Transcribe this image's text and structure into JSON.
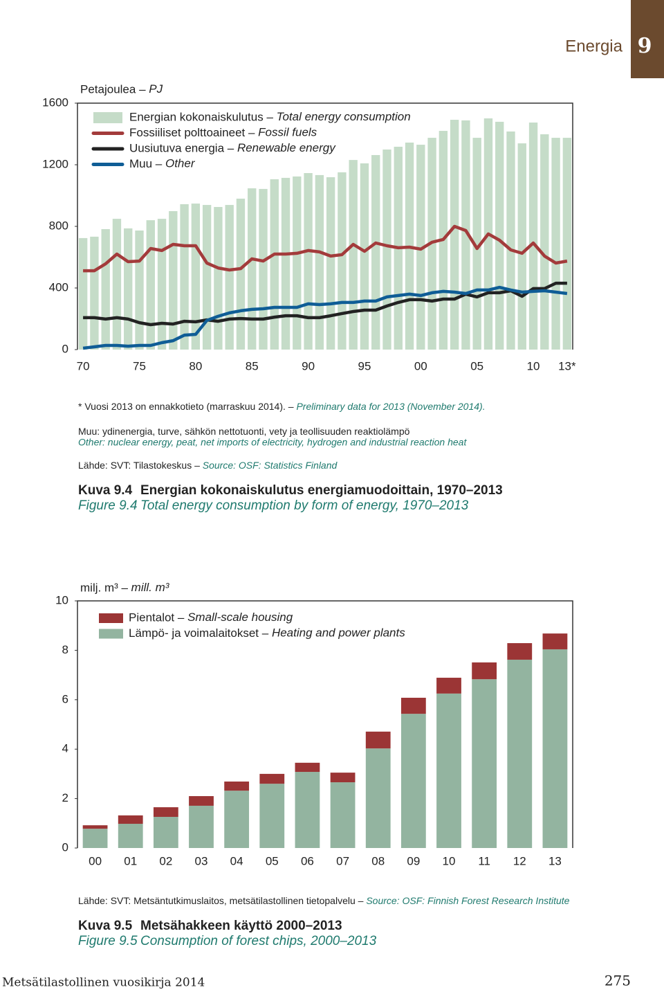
{
  "header": {
    "section": "Energia",
    "number": "9"
  },
  "chart_data": [
    {
      "type": "combo",
      "unit_label": "Petajoulea – PJ",
      "categories": [
        "70",
        null,
        null,
        null,
        null,
        "75",
        null,
        null,
        null,
        null,
        "80",
        null,
        null,
        null,
        null,
        "85",
        null,
        null,
        null,
        null,
        "90",
        null,
        null,
        null,
        null,
        "95",
        null,
        null,
        null,
        null,
        "00",
        null,
        null,
        null,
        null,
        "05",
        null,
        null,
        null,
        null,
        "10",
        null,
        null,
        "13*"
      ],
      "ylim": [
        0,
        1600
      ],
      "yticks": [
        0,
        400,
        800,
        1200,
        1600
      ],
      "grid": false,
      "series": [
        {
          "name": "Energian kokonaiskulutus – Total energy consumption",
          "kind": "bar",
          "color": "#c5dcc8",
          "values": [
            724,
            733,
            782,
            849,
            787,
            773,
            840,
            849,
            899,
            944,
            948,
            939,
            926,
            939,
            980,
            1047,
            1043,
            1106,
            1115,
            1124,
            1146,
            1133,
            1119,
            1151,
            1231,
            1209,
            1263,
            1299,
            1317,
            1344,
            1330,
            1375,
            1420,
            1492,
            1488,
            1375,
            1501,
            1479,
            1416,
            1339,
            1474,
            1398,
            1375,
            1375
          ]
        },
        {
          "name": "Fossiiliset polttoaineet – Fossil fuels",
          "kind": "line",
          "color": "#a33b3b",
          "values": [
            512,
            512,
            557,
            620,
            571,
            575,
            656,
            643,
            683,
            674,
            674,
            562,
            530,
            517,
            526,
            589,
            575,
            620,
            620,
            625,
            643,
            634,
            607,
            616,
            683,
            638,
            692,
            674,
            661,
            665,
            652,
            697,
            715,
            800,
            773,
            656,
            751,
            710,
            647,
            625,
            692,
            607,
            562,
            575
          ]
        },
        {
          "name": "Uusiutuva energia – Renewable energy",
          "kind": "line",
          "color": "#222222",
          "values": [
            207,
            207,
            198,
            207,
            198,
            175,
            162,
            171,
            166,
            184,
            180,
            193,
            184,
            198,
            202,
            198,
            198,
            211,
            220,
            220,
            207,
            207,
            220,
            234,
            247,
            256,
            256,
            283,
            306,
            324,
            324,
            315,
            328,
            328,
            360,
            342,
            369,
            369,
            382,
            346,
            396,
            396,
            431,
            431
          ]
        },
        {
          "name": "Muu – Other",
          "kind": "line",
          "color": "#0f5d96",
          "values": [
            9,
            18,
            27,
            27,
            22,
            27,
            27,
            45,
            58,
            94,
            99,
            189,
            216,
            238,
            252,
            261,
            265,
            274,
            274,
            274,
            297,
            292,
            297,
            306,
            306,
            315,
            315,
            342,
            351,
            360,
            351,
            369,
            378,
            373,
            364,
            387,
            387,
            404,
            387,
            373,
            378,
            382,
            373,
            364
          ]
        }
      ],
      "notes": [
        {
          "fi": "*   Vuosi 2013 on ennakkotieto (marraskuu 2014). –",
          "en": "Preliminary data for 2013 (November 2014)."
        },
        {
          "fi": "Muu: ydinenergia, turve, sähkön nettotuonti, vety ja teollisuuden reaktiolämpö",
          "en": "Other: nuclear energy, peat, net imports of electricity, hydrogen and industrial reaction heat"
        },
        {
          "fi": "Lähde: SVT: Tilastokeskus –",
          "en": "Source: OSF: Statistics Finland"
        }
      ],
      "caption": {
        "fi_label": "Kuva 9.4",
        "fi_title": "Energian kokonaiskulutus energiamuodoittain, 1970–2013",
        "en_label": "Figure 9.4",
        "en_title": "Total energy consumption by form of energy, 1970–2013"
      }
    },
    {
      "type": "stacked_bar",
      "unit_label": "milj. m³ – mill. m³",
      "categories": [
        "00",
        "01",
        "02",
        "03",
        "04",
        "05",
        "06",
        "07",
        "08",
        "09",
        "10",
        "11",
        "12",
        "13"
      ],
      "ylim": [
        0,
        10
      ],
      "yticks": [
        0,
        2,
        4,
        6,
        8,
        10
      ],
      "grid": false,
      "series": [
        {
          "name": "Pientalot – Small-scale housing",
          "color": "#9b3535",
          "values": [
            0.14,
            0.34,
            0.39,
            0.39,
            0.37,
            0.4,
            0.37,
            0.39,
            0.68,
            0.65,
            0.64,
            0.68,
            0.67,
            0.64
          ]
        },
        {
          "name": "Lämpö- ja voimalaitokset – Heating and power plants",
          "color": "#93b4a0",
          "values": [
            0.78,
            0.98,
            1.26,
            1.71,
            2.32,
            2.6,
            3.08,
            2.66,
            4.03,
            5.43,
            6.25,
            6.83,
            7.62,
            8.04
          ]
        }
      ],
      "notes": [
        {
          "fi": "Lähde: SVT: Metsäntutkimuslaitos, metsätilastollinen tietopalvelu –",
          "en": "Source: OSF: Finnish Forest Research Institute"
        }
      ],
      "caption": {
        "fi_label": "Kuva 9.5",
        "fi_title": "Metsähakkeen käyttö 2000–2013",
        "en_label": "Figure 9.5",
        "en_title": "Consumption of forest chips, 2000–2013"
      }
    }
  ],
  "footer": {
    "title": "Metsätilastollinen vuosikirja 2014",
    "page": "275"
  }
}
